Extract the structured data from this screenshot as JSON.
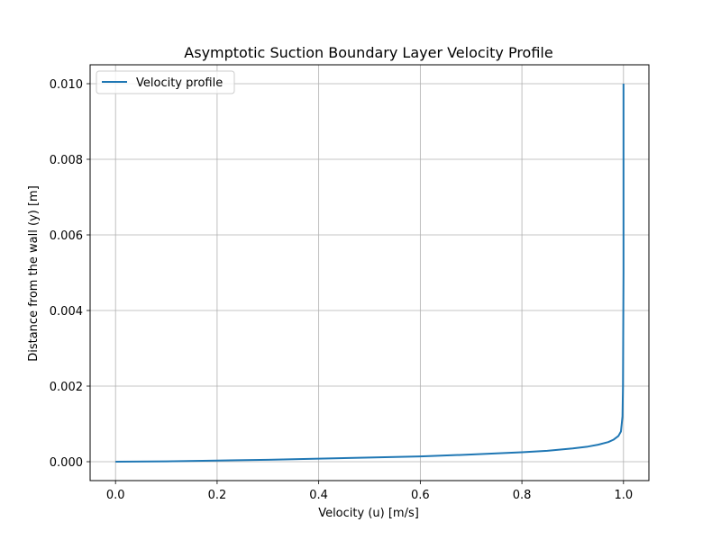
{
  "chart_data": {
    "type": "line",
    "title": "Asymptotic Suction Boundary Layer Velocity Profile",
    "xlabel": "Velocity (u) [m/s]",
    "ylabel": "Distance from the wall (y) [m]",
    "xlim": [
      -0.05,
      1.05
    ],
    "ylim": [
      -0.0005,
      0.0105
    ],
    "xticks": [
      0.0,
      0.2,
      0.4,
      0.6,
      0.8,
      1.0
    ],
    "xtick_labels": [
      "0.0",
      "0.2",
      "0.4",
      "0.6",
      "0.8",
      "1.0"
    ],
    "yticks": [
      0.0,
      0.002,
      0.004,
      0.006,
      0.008,
      0.01
    ],
    "ytick_labels": [
      "0.000",
      "0.002",
      "0.004",
      "0.006",
      "0.008",
      "0.010"
    ],
    "grid": true,
    "legend": {
      "position": "top-left"
    },
    "series": [
      {
        "name": "Velocity profile",
        "color": "#1f77b4",
        "x": [
          0.0,
          0.1,
          0.2,
          0.3,
          0.4,
          0.5,
          0.6,
          0.7,
          0.8,
          0.85,
          0.9,
          0.93,
          0.95,
          0.97,
          0.98,
          0.99,
          0.995,
          0.998,
          0.999,
          1.0,
          1.0
        ],
        "y": [
          0.0,
          1e-05,
          3e-05,
          5e-05,
          8e-05,
          0.00011,
          0.00014,
          0.00019,
          0.00025,
          0.00029,
          0.00035,
          0.0004,
          0.00045,
          0.00052,
          0.00058,
          0.00068,
          0.0008,
          0.0012,
          0.002,
          0.005,
          0.01
        ]
      }
    ]
  }
}
